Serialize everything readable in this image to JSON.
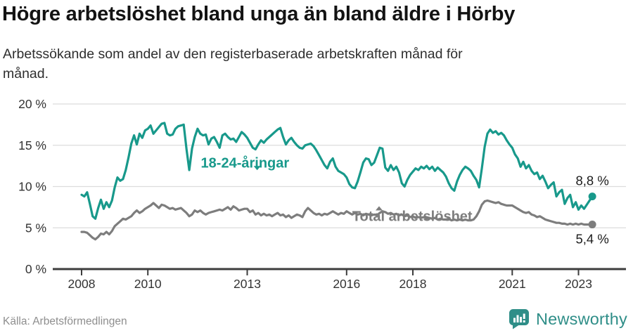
{
  "header": {
    "title": "Högre arbetslöshet bland unga än bland äldre i Hörby",
    "subtitle_lines": [
      "Arbetssökande som andel av den registerbaserade arbetskraften månad för",
      "månad."
    ]
  },
  "footer": {
    "source": "Källa: Arbetsförmedlingen",
    "brand": "Newsworthy",
    "brand_color": "#2f8e88",
    "brand_icon": "newsworthy-bubble-barchart-icon"
  },
  "chart_data": {
    "type": "line",
    "title": "Högre arbetslöshet bland unga än bland äldre i Hörby",
    "subtitle": "Arbetssökande som andel av den registerbaserade arbetskraften månad för månad.",
    "unit": "%",
    "frequency": "monthly",
    "x_start": {
      "year": 2008,
      "month": 1
    },
    "x_end": {
      "year": 2023,
      "month": 6
    },
    "ylim": [
      0,
      20
    ],
    "grid": "horizontal",
    "style": {
      "grid": "#dcdcdc",
      "axis": "#3d3d3d",
      "axis_text": "#333333",
      "value_text": "#1c1c1c",
      "background": "#ffffff"
    },
    "y_ticks": [
      {
        "value": 0,
        "label": "0 %"
      },
      {
        "value": 5,
        "label": "5 %"
      },
      {
        "value": 10,
        "label": "10 %"
      },
      {
        "value": 15,
        "label": "15 %"
      },
      {
        "value": 20,
        "label": "20 %"
      }
    ],
    "x_ticks": [
      {
        "year": 2008,
        "label": "2008"
      },
      {
        "year": 2010,
        "label": "2010"
      },
      {
        "year": 2013,
        "label": "2013"
      },
      {
        "year": 2016,
        "label": "2016"
      },
      {
        "year": 2018,
        "label": "2018"
      },
      {
        "year": 2021,
        "label": "2021"
      },
      {
        "year": 2023,
        "label": "2023"
      }
    ],
    "series": [
      {
        "id": "young",
        "name": "18-24-åringar",
        "color": "#18998b",
        "end_label": "8,8 %",
        "end_value": 8.8,
        "label": {
          "year": 2011.6,
          "value": 12.3,
          "caret": {
            "year": 2013.3,
            "value": 12.15,
            "dir": "down"
          }
        },
        "values": [
          9.0,
          8.8,
          9.3,
          7.9,
          6.4,
          6.1,
          7.4,
          8.4,
          7.3,
          8.1,
          7.5,
          8.3,
          9.9,
          11.1,
          10.7,
          10.9,
          12.0,
          13.5,
          15.2,
          16.2,
          15.1,
          16.4,
          15.9,
          16.8,
          17.0,
          17.4,
          16.4,
          16.8,
          17.2,
          17.6,
          17.7,
          16.4,
          16.2,
          16.3,
          17.0,
          17.3,
          17.4,
          17.5,
          14.5,
          12.0,
          14.6,
          16.0,
          17.0,
          16.4,
          16.2,
          16.3,
          15.1,
          15.8,
          16.0,
          15.4,
          14.7,
          16.2,
          16.4,
          16.0,
          15.7,
          15.8,
          15.4,
          16.0,
          16.6,
          16.3,
          15.9,
          15.3,
          14.7,
          14.5,
          15.1,
          15.6,
          15.3,
          15.7,
          16.0,
          16.3,
          16.6,
          16.9,
          17.1,
          16.0,
          15.1,
          15.6,
          15.9,
          15.4,
          15.0,
          14.7,
          14.6,
          15.0,
          15.1,
          15.2,
          14.9,
          14.4,
          13.8,
          13.2,
          12.6,
          12.2,
          13.0,
          13.4,
          12.4,
          11.9,
          11.7,
          11.5,
          11.1,
          10.3,
          9.9,
          9.8,
          10.6,
          11.7,
          12.9,
          13.4,
          13.3,
          12.6,
          12.9,
          13.8,
          14.7,
          14.6,
          12.3,
          11.9,
          12.6,
          12.0,
          12.4,
          11.7,
          10.4,
          10.0,
          10.8,
          11.4,
          11.8,
          12.2,
          12.0,
          12.4,
          12.2,
          12.5,
          12.1,
          12.4,
          11.9,
          12.3,
          12.0,
          11.7,
          11.2,
          10.4,
          9.8,
          9.5,
          10.6,
          11.4,
          12.0,
          12.4,
          12.2,
          11.9,
          11.3,
          10.8,
          9.9,
          12.2,
          14.8,
          16.4,
          16.9,
          16.5,
          16.7,
          16.3,
          16.5,
          16.2,
          15.6,
          15.1,
          14.7,
          13.9,
          13.4,
          12.4,
          13.0,
          12.2,
          12.6,
          11.9,
          11.5,
          11.7,
          10.9,
          11.3,
          10.6,
          9.8,
          10.2,
          10.5,
          8.8,
          9.3,
          9.6,
          7.9,
          8.6,
          9.0,
          7.5,
          8.1,
          7.2,
          7.7,
          7.3,
          7.8,
          8.3,
          8.8
        ]
      },
      {
        "id": "total",
        "name": "Total arbetslöshet",
        "color": "#7d7d7d",
        "end_label": "5,4 %",
        "end_value": 5.4,
        "label": {
          "year": 2016.17,
          "value": 5.85,
          "caret": {
            "year": 2016.98,
            "value": 7.45,
            "dir": "up"
          }
        },
        "values": [
          4.5,
          4.5,
          4.4,
          4.1,
          3.8,
          3.6,
          3.9,
          4.3,
          4.2,
          4.5,
          4.2,
          4.6,
          5.2,
          5.5,
          5.8,
          6.1,
          6.0,
          6.2,
          6.4,
          6.8,
          7.1,
          6.8,
          7.0,
          7.3,
          7.5,
          7.7,
          8.0,
          7.7,
          7.4,
          7.8,
          7.7,
          7.5,
          7.3,
          7.4,
          7.2,
          7.3,
          7.4,
          7.1,
          6.8,
          6.4,
          6.6,
          7.1,
          6.9,
          7.1,
          6.8,
          6.6,
          6.8,
          6.9,
          7.0,
          7.1,
          7.2,
          7.1,
          7.3,
          7.5,
          7.2,
          7.6,
          7.4,
          7.1,
          7.2,
          7.3,
          7.3,
          6.9,
          7.1,
          6.6,
          6.8,
          6.5,
          6.7,
          6.5,
          6.6,
          6.4,
          6.6,
          6.8,
          6.5,
          6.6,
          6.3,
          6.5,
          6.2,
          6.4,
          6.6,
          6.5,
          6.3,
          7.0,
          7.4,
          7.1,
          6.8,
          6.6,
          6.7,
          6.5,
          6.7,
          6.6,
          6.8,
          7.0,
          6.8,
          6.6,
          6.8,
          6.7,
          7.0,
          6.8,
          6.6,
          6.8,
          6.6,
          6.7,
          6.5,
          6.7,
          6.6,
          6.5,
          6.6,
          6.5,
          6.8,
          7.0,
          6.9,
          6.7,
          6.8,
          6.6,
          6.7,
          6.5,
          6.6,
          6.4,
          6.5,
          6.3,
          6.4,
          6.2,
          6.3,
          6.2,
          6.3,
          6.1,
          6.2,
          6.1,
          6.2,
          6.0,
          6.1,
          6.0,
          6.0,
          6.1,
          5.9,
          6.0,
          5.9,
          6.0,
          5.9,
          6.0,
          5.9,
          5.9,
          6.0,
          6.4,
          7.0,
          7.8,
          8.2,
          8.3,
          8.2,
          8.1,
          8.0,
          8.1,
          7.9,
          7.8,
          7.7,
          7.7,
          7.7,
          7.5,
          7.3,
          7.1,
          6.9,
          6.8,
          6.9,
          6.6,
          6.5,
          6.3,
          6.4,
          6.2,
          6.0,
          5.9,
          5.8,
          5.7,
          5.6,
          5.6,
          5.5,
          5.5,
          5.4,
          5.5,
          5.4,
          5.5,
          5.4,
          5.5,
          5.4,
          5.4,
          5.4,
          5.4
        ]
      }
    ]
  }
}
